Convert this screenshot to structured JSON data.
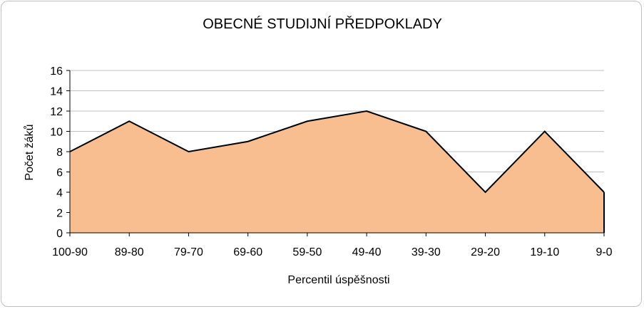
{
  "chart_data": {
    "type": "area",
    "title": "OBECNÉ STUDIJNÍ PŘEDPOKLADY",
    "xlabel": "Percentil úspěšnosti",
    "ylabel": "Počet žáků",
    "categories": [
      "100-90",
      "89-80",
      "79-70",
      "69-60",
      "59-50",
      "49-40",
      "39-30",
      "29-20",
      "19-10",
      "9-0"
    ],
    "values": [
      8,
      11,
      8,
      9,
      11,
      12,
      10,
      4,
      10,
      4
    ],
    "ylim": [
      0,
      16
    ],
    "yticks": [
      0,
      2,
      4,
      6,
      8,
      10,
      12,
      14,
      16
    ],
    "grid": true,
    "legend": "none",
    "colors": {
      "fill": "#f9be8f",
      "line": "#000000",
      "grid": "#c0c0c0"
    }
  }
}
